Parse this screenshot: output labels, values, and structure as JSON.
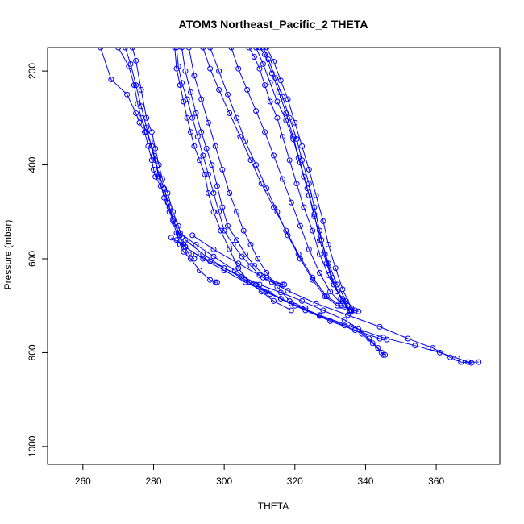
{
  "chart_data": {
    "type": "line",
    "title": "ATOM3 Northeast_Pacific_2 THETA",
    "xlabel": "THETA",
    "ylabel": "Pressure (mbar)",
    "xlim": [
      250,
      378
    ],
    "ylim": [
      1038,
      150
    ],
    "y_inverted": true,
    "x_ticks": [
      260,
      280,
      300,
      320,
      340,
      360
    ],
    "y_ticks": [
      200,
      400,
      600,
      800,
      1000
    ],
    "grid": false,
    "color": "#0000ff",
    "series": [
      {
        "x": [
          265.0,
          268.0,
          272.5,
          275.0,
          276.0,
          277.5,
          278.5,
          279.5,
          280.0,
          280.5,
          282.0,
          284.0,
          285.5,
          286.5,
          287.5,
          288.5,
          290.5,
          293.0,
          296.0,
          297.5,
          298.0
        ],
        "y": [
          150,
          218,
          250,
          290,
          310,
          330,
          360,
          390,
          410,
          425,
          445,
          480,
          520,
          545,
          570,
          585,
          600,
          625,
          645,
          650,
          650
        ]
      },
      {
        "x": [
          270.0,
          273.0,
          274.5,
          275.5,
          276.5,
          278.0,
          279.5,
          280.5,
          281.5,
          283.0,
          284.5,
          285.5,
          287.0,
          288.5,
          290.0,
          291.5
        ],
        "y": [
          150,
          190,
          230,
          270,
          300,
          330,
          360,
          390,
          420,
          450,
          490,
          515,
          545,
          570,
          590,
          600
        ]
      },
      {
        "x": [
          272.0,
          273.5,
          275.0,
          276.5,
          278.0,
          279.0,
          280.0,
          281.5,
          283.0,
          284.5,
          286.0,
          287.5
        ],
        "y": [
          150,
          185,
          230,
          275,
          320,
          350,
          380,
          425,
          470,
          500,
          525,
          550
        ]
      },
      {
        "x": [
          274.0,
          275.0,
          276.5,
          278.0,
          279.5,
          280.5,
          281.5,
          282.5,
          284.0,
          285.5,
          287.0,
          288.0
        ],
        "y": [
          150,
          178,
          240,
          300,
          330,
          365,
          400,
          430,
          460,
          500,
          530,
          555
        ]
      },
      {
        "x": [
          286.0,
          286.5,
          287.5,
          288.5,
          289.5,
          290.5,
          291.5,
          293.0,
          294.5,
          295.5,
          297.0,
          299.0,
          301.5,
          304.0,
          307.0,
          310.5,
          314.0,
          319.0
        ],
        "y": [
          150,
          195,
          230,
          265,
          300,
          330,
          360,
          390,
          420,
          460,
          500,
          540,
          580,
          620,
          650,
          670,
          690,
          710
        ]
      },
      {
        "x": [
          286.5,
          287.0,
          288.0,
          289.5,
          291.0,
          292.5,
          294.0,
          295.5,
          297.0,
          298.5,
          300.0,
          302.5,
          305.0,
          307.5,
          310.0,
          313.5,
          317.0
        ],
        "y": [
          150,
          190,
          225,
          260,
          300,
          340,
          380,
          420,
          460,
          500,
          540,
          570,
          595,
          615,
          635,
          650,
          655
        ]
      },
      {
        "x": [
          288.0,
          289.0,
          290.5,
          292.0,
          293.5,
          295.0,
          296.5,
          298.0,
          299.5,
          301.0,
          303.5,
          306.0,
          308.5,
          312.0,
          316.5
        ],
        "y": [
          150,
          200,
          245,
          290,
          330,
          365,
          400,
          445,
          490,
          530,
          560,
          590,
          615,
          640,
          655
        ]
      },
      {
        "x": [
          290.0,
          291.5,
          293.5,
          295.5,
          297.5,
          299.5,
          301.5,
          303.5,
          305.5,
          307.5,
          309.5,
          312.0,
          315.0,
          318.5,
          323.0
        ],
        "y": [
          150,
          210,
          260,
          310,
          360,
          410,
          460,
          500,
          540,
          570,
          600,
          630,
          660,
          690,
          705
        ]
      },
      {
        "x": [
          294.0,
          296.0,
          298.5,
          301.5,
          304.5,
          307.5,
          310.5,
          314.0,
          317.5,
          321.0,
          325.0,
          329.0,
          333.0,
          336.0
        ],
        "y": [
          150,
          195,
          240,
          290,
          340,
          390,
          440,
          490,
          540,
          590,
          640,
          680,
          700,
          710
        ]
      },
      {
        "x": [
          296.0,
          298.5,
          301.0,
          303.5,
          306.0,
          309.0,
          312.0,
          315.0,
          318.0,
          321.5,
          325.0,
          328.5,
          332.0,
          335.5
        ],
        "y": [
          150,
          200,
          250,
          300,
          350,
          400,
          450,
          500,
          550,
          600,
          645,
          680,
          700,
          712
        ]
      },
      {
        "x": [
          302.0,
          304.0,
          306.5,
          309.0,
          311.5,
          314.0,
          316.5,
          319.0,
          321.5,
          324.0,
          327.0,
          330.0,
          333.0,
          336.0,
          338.0
        ],
        "y": [
          150,
          195,
          240,
          285,
          330,
          380,
          430,
          480,
          530,
          580,
          630,
          670,
          695,
          710,
          712
        ]
      },
      {
        "x": [
          307.0,
          308.5,
          310.0,
          311.5,
          313.0,
          315.0,
          316.5,
          318.5,
          320.5,
          322.5,
          325.0,
          327.0,
          329.5,
          332.0,
          335.0
        ],
        "y": [
          150,
          170,
          195,
          230,
          265,
          300,
          340,
          390,
          440,
          490,
          540,
          590,
          635,
          670,
          700
        ]
      },
      {
        "x": [
          309.0,
          311.0,
          313.0,
          315.0,
          317.5,
          319.5,
          321.0,
          322.5,
          324.0,
          325.5,
          327.5,
          329.5,
          332.0,
          334.5,
          337.0
        ],
        "y": [
          150,
          185,
          225,
          265,
          305,
          345,
          385,
          425,
          465,
          510,
          560,
          610,
          655,
          690,
          710
        ]
      },
      {
        "x": [
          311.0,
          312.5,
          314.5,
          316.5,
          318.5,
          320.5,
          322.0,
          324.0,
          325.5,
          327.0,
          328.5,
          330.5,
          333.0,
          335.5
        ],
        "y": [
          150,
          175,
          215,
          255,
          300,
          345,
          390,
          440,
          490,
          540,
          590,
          640,
          685,
          710
        ]
      },
      {
        "x": [
          310.0,
          311.5,
          313.5,
          315.5,
          317.5,
          319.5,
          321.5,
          323.5,
          325.5,
          327.0,
          329.0,
          331.0,
          333.5,
          336.0
        ],
        "y": [
          150,
          165,
          205,
          245,
          290,
          340,
          395,
          450,
          505,
          560,
          610,
          655,
          690,
          712
        ]
      },
      {
        "x": [
          312.0,
          314.0,
          316.0,
          318.0,
          320.0,
          322.0,
          324.0,
          326.0,
          328.0,
          329.5,
          331.5,
          333.5,
          336.0
        ],
        "y": [
          150,
          180,
          220,
          260,
          310,
          360,
          410,
          465,
          520,
          570,
          620,
          665,
          705
        ]
      },
      {
        "x": [
          286.5,
          289.0,
          292.0,
          296.0,
          300.0,
          305.0,
          310.0,
          316.0,
          322.0,
          328.0,
          334.0,
          338.0,
          341.0,
          343.5,
          345.0
        ],
        "y": [
          560,
          575,
          590,
          605,
          620,
          638,
          655,
          672,
          690,
          710,
          730,
          750,
          770,
          790,
          805
        ]
      },
      {
        "x": [
          285.0,
          289.0,
          294.0,
          300.0,
          306.0,
          313.0,
          320.0,
          327.0,
          334.0,
          339.0,
          342.0,
          344.5,
          345.5
        ],
        "y": [
          555,
          575,
          600,
          625,
          650,
          675,
          700,
          722,
          742,
          760,
          780,
          800,
          805
        ]
      },
      {
        "x": [
          287.5,
          292.0,
          297.0,
          303.0,
          309.0,
          316.0,
          323.0,
          330.0,
          337.0,
          344.0,
          346.0
        ],
        "y": [
          545,
          570,
          595,
          625,
          655,
          685,
          710,
          733,
          752,
          770,
          772
        ]
      },
      {
        "x": [
          289.0,
          294.0,
          300.0,
          306.0,
          312.0,
          319.0,
          327.0,
          336.0,
          345.0,
          354.0,
          361.0,
          366.0,
          369.0,
          372.0
        ],
        "y": [
          560,
          590,
          620,
          645,
          670,
          695,
          720,
          745,
          768,
          785,
          800,
          812,
          820,
          820
        ]
      },
      {
        "x": [
          291.0,
          297.0,
          304.0,
          311.0,
          318.0,
          326.0,
          335.0,
          344.0,
          352.0,
          359.0,
          364.0,
          367.0,
          370.0
        ],
        "y": [
          550,
          580,
          610,
          640,
          668,
          695,
          720,
          745,
          770,
          790,
          810,
          820,
          822
        ]
      }
    ]
  }
}
